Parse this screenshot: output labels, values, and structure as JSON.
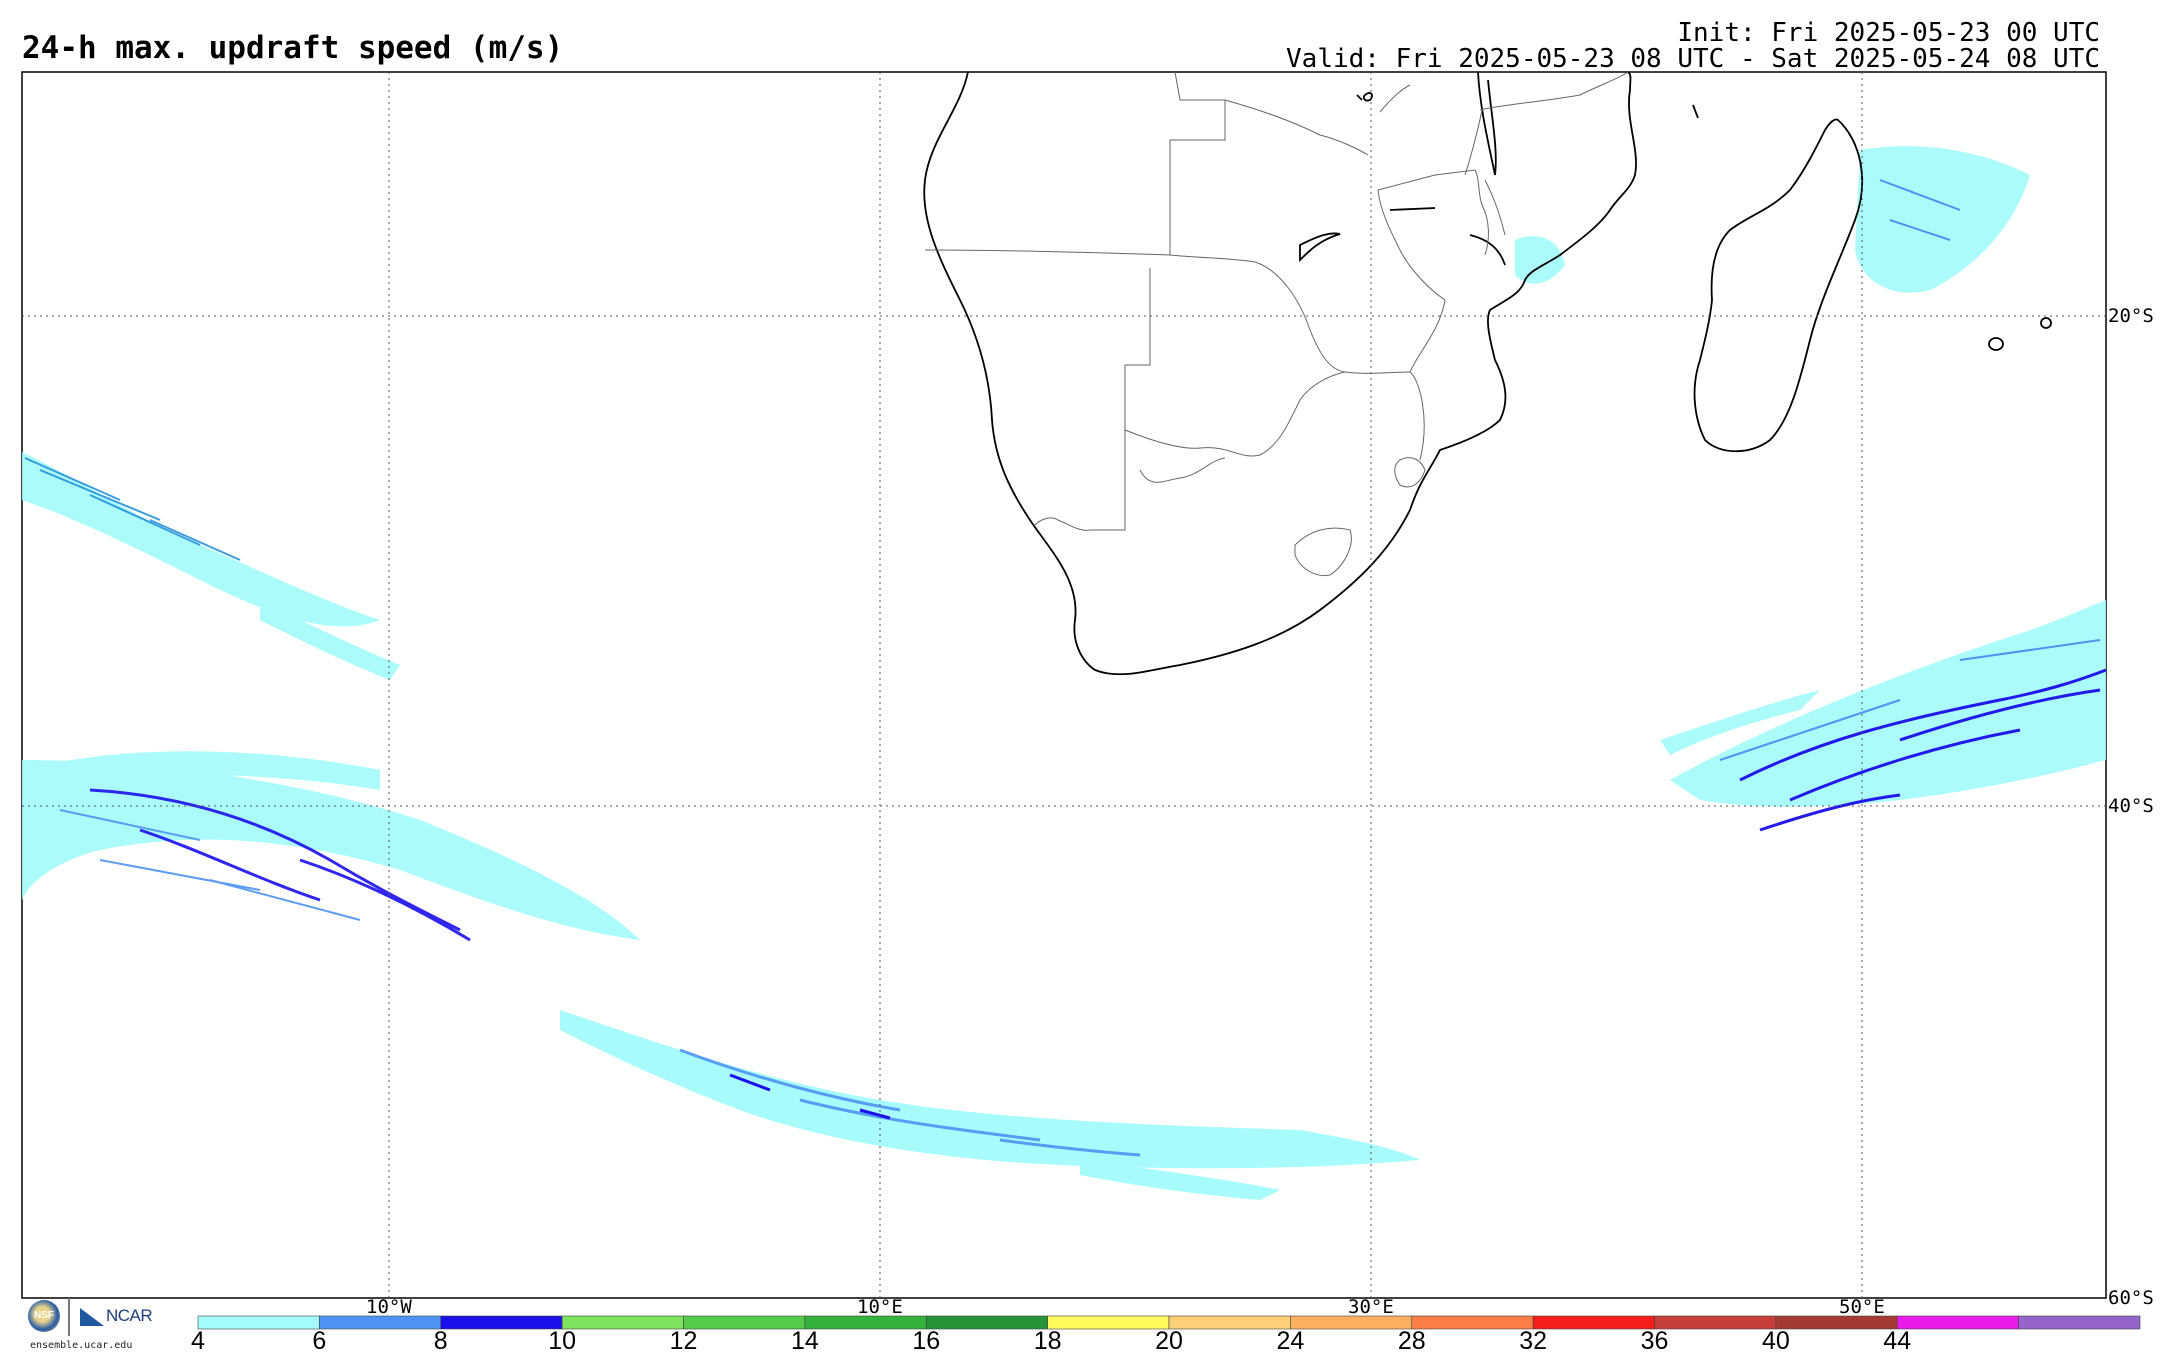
{
  "header": {
    "title": "24-h max. updraft speed (m/s)",
    "init": "Init: Fri 2025-05-23 00 UTC",
    "valid": "Valid: Fri 2025-05-23 08 UTC - Sat 2025-05-24 08 UTC"
  },
  "map": {
    "lat_labels": [
      "20°S",
      "40°S",
      "60°S"
    ],
    "lon_labels": [
      "10°W",
      "10°E",
      "30°E",
      "50°E"
    ]
  },
  "colorbar": {
    "ticks": [
      "4",
      "6",
      "8",
      "10",
      "12",
      "14",
      "16",
      "18",
      "20",
      "24",
      "28",
      "32",
      "36",
      "40",
      "44"
    ],
    "colors": [
      "#a3fbfb",
      "#4e93f4",
      "#1b0fec",
      "#7ee35e",
      "#54cb4a",
      "#34b33c",
      "#27943a",
      "#fffb5c",
      "#fdd078",
      "#fdb060",
      "#fb7e48",
      "#f71e1a",
      "#c83e3a",
      "#a43a32",
      "#ea1aea",
      "#9565c9"
    ]
  },
  "footer": {
    "logo_nsf": "NSF",
    "logo_ncar": "NCAR",
    "site": "ensemble.ucar.edu"
  }
}
